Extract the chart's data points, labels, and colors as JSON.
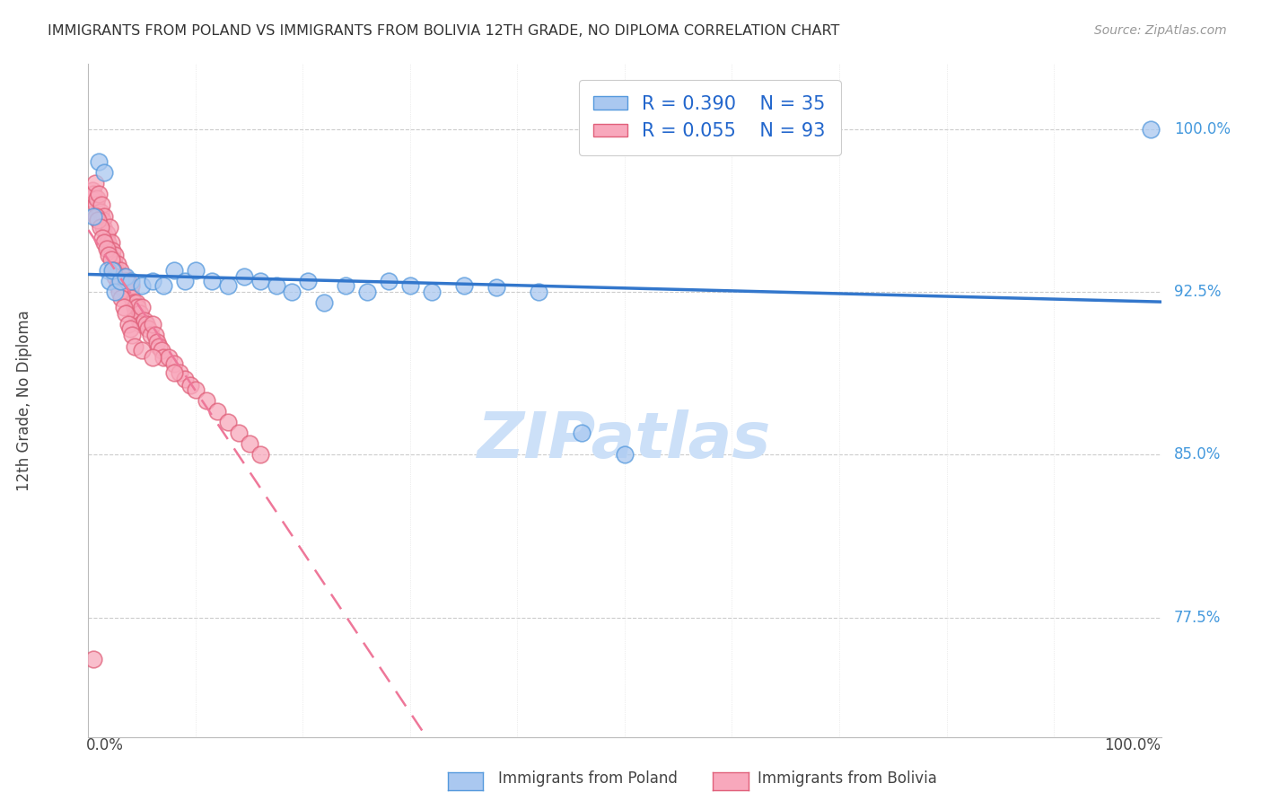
{
  "title": "IMMIGRANTS FROM POLAND VS IMMIGRANTS FROM BOLIVIA 12TH GRADE, NO DIPLOMA CORRELATION CHART",
  "source": "Source: ZipAtlas.com",
  "ylabel": "12th Grade, No Diploma",
  "ytick_labels": [
    "100.0%",
    "92.5%",
    "85.0%",
    "77.5%"
  ],
  "ytick_values": [
    1.0,
    0.925,
    0.85,
    0.775
  ],
  "xrange": [
    0.0,
    1.0
  ],
  "yrange": [
    0.72,
    1.03
  ],
  "poland_color": "#aac8f0",
  "poland_edge_color": "#5599dd",
  "bolivia_color": "#f8a8bc",
  "bolivia_edge_color": "#e0607a",
  "poland_R": 0.39,
  "poland_N": 35,
  "bolivia_R": 0.055,
  "bolivia_N": 93,
  "poland_line_color": "#3377cc",
  "bolivia_line_color": "#ee7799",
  "watermark_color": "#cce0f8",
  "poland_scatter_x": [
    0.005,
    0.01,
    0.015,
    0.018,
    0.02,
    0.022,
    0.025,
    0.03,
    0.035,
    0.04,
    0.05,
    0.06,
    0.07,
    0.08,
    0.09,
    0.1,
    0.115,
    0.13,
    0.145,
    0.16,
    0.175,
    0.19,
    0.205,
    0.22,
    0.24,
    0.26,
    0.28,
    0.3,
    0.32,
    0.35,
    0.38,
    0.42,
    0.46,
    0.5,
    0.99
  ],
  "poland_scatter_y": [
    0.96,
    0.985,
    0.98,
    0.935,
    0.93,
    0.935,
    0.925,
    0.93,
    0.932,
    0.93,
    0.928,
    0.93,
    0.928,
    0.935,
    0.93,
    0.935,
    0.93,
    0.928,
    0.932,
    0.93,
    0.928,
    0.925,
    0.93,
    0.92,
    0.928,
    0.925,
    0.93,
    0.928,
    0.925,
    0.928,
    0.927,
    0.925,
    0.86,
    0.85,
    1.0
  ],
  "bolivia_scatter_x": [
    0.003,
    0.004,
    0.005,
    0.006,
    0.007,
    0.008,
    0.009,
    0.01,
    0.011,
    0.012,
    0.013,
    0.014,
    0.015,
    0.016,
    0.017,
    0.018,
    0.019,
    0.02,
    0.021,
    0.022,
    0.023,
    0.024,
    0.025,
    0.026,
    0.027,
    0.028,
    0.029,
    0.03,
    0.031,
    0.032,
    0.033,
    0.034,
    0.035,
    0.036,
    0.037,
    0.038,
    0.039,
    0.04,
    0.041,
    0.042,
    0.043,
    0.044,
    0.045,
    0.046,
    0.047,
    0.048,
    0.049,
    0.05,
    0.052,
    0.054,
    0.056,
    0.058,
    0.06,
    0.062,
    0.064,
    0.066,
    0.068,
    0.07,
    0.075,
    0.08,
    0.085,
    0.09,
    0.095,
    0.1,
    0.11,
    0.12,
    0.13,
    0.14,
    0.15,
    0.16,
    0.005,
    0.007,
    0.009,
    0.011,
    0.013,
    0.015,
    0.017,
    0.019,
    0.021,
    0.023,
    0.025,
    0.027,
    0.029,
    0.031,
    0.033,
    0.035,
    0.037,
    0.039,
    0.041,
    0.043,
    0.05,
    0.06,
    0.08
  ],
  "bolivia_scatter_y": [
    0.968,
    0.972,
    0.97,
    0.975,
    0.965,
    0.968,
    0.96,
    0.97,
    0.962,
    0.965,
    0.958,
    0.955,
    0.96,
    0.95,
    0.952,
    0.948,
    0.945,
    0.955,
    0.948,
    0.944,
    0.94,
    0.938,
    0.942,
    0.935,
    0.938,
    0.932,
    0.928,
    0.935,
    0.93,
    0.928,
    0.932,
    0.925,
    0.93,
    0.925,
    0.93,
    0.928,
    0.925,
    0.928,
    0.922,
    0.92,
    0.918,
    0.915,
    0.92,
    0.918,
    0.912,
    0.915,
    0.91,
    0.918,
    0.912,
    0.91,
    0.908,
    0.905,
    0.91,
    0.905,
    0.902,
    0.9,
    0.898,
    0.895,
    0.895,
    0.892,
    0.888,
    0.885,
    0.882,
    0.88,
    0.875,
    0.87,
    0.865,
    0.86,
    0.855,
    0.85,
    0.756,
    0.96,
    0.958,
    0.955,
    0.95,
    0.948,
    0.945,
    0.942,
    0.94,
    0.935,
    0.932,
    0.928,
    0.925,
    0.922,
    0.918,
    0.915,
    0.91,
    0.908,
    0.905,
    0.9,
    0.898,
    0.895,
    0.888
  ]
}
